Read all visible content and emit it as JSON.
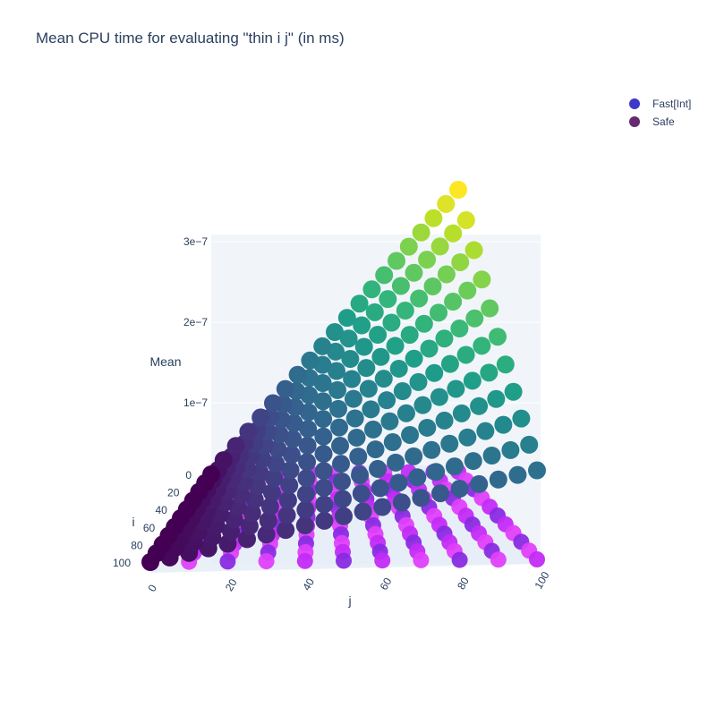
{
  "chart_data": {
    "type": "scatter",
    "title": "Mean CPU time for evaluating \"thin i j\" (in ms)",
    "xlabel": "j",
    "ylabel": "i",
    "zlabel": "Mean",
    "xlim": [
      0,
      100
    ],
    "ylim": [
      0,
      100
    ],
    "zlim": [
      0,
      3.5e-07
    ],
    "x_ticks": [
      "0",
      "20",
      "40",
      "60",
      "80",
      "100"
    ],
    "y_ticks": [
      "0",
      "20",
      "40",
      "60",
      "80",
      "100"
    ],
    "z_ticks": [
      "1e−7",
      "2e−7",
      "3e−7"
    ],
    "grid": true,
    "legend_position": "top-right",
    "colorscale": "viridis",
    "series": [
      {
        "name": "Fast[Int]",
        "color": "#3f37c9",
        "surface": "flat near zero across i and j",
        "points_z_approx": 0,
        "marker_colors": [
          "#8a2be2",
          "#c32bf5",
          "#e040fb"
        ]
      },
      {
        "name": "Safe",
        "color": "#652a6f",
        "surface": "mean increases with j and i",
        "corner_values": [
          {
            "i": 0,
            "j": 0,
            "mean": 0
          },
          {
            "i": 100,
            "j": 0,
            "mean": 0
          },
          {
            "i": 0,
            "j": 100,
            "mean": 3.5e-07
          },
          {
            "i": 100,
            "j": 100,
            "mean": 1.3e-07
          }
        ]
      }
    ]
  }
}
